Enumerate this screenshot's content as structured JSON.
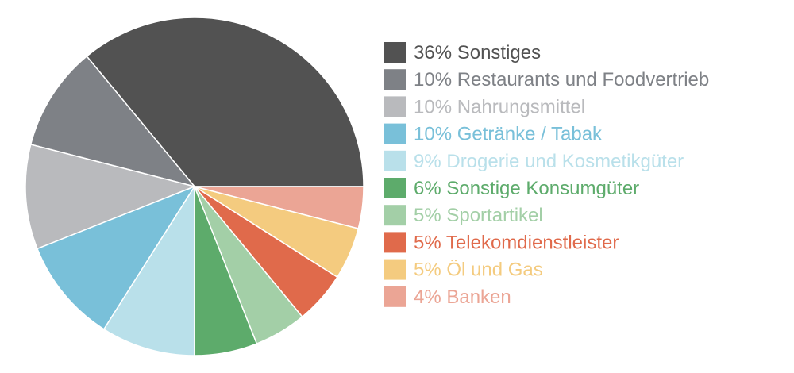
{
  "chart_data": {
    "type": "pie",
    "legend": "right",
    "slices": [
      {
        "pct": 36,
        "name": "Sonstiges",
        "color": "#525252"
      },
      {
        "pct": 10,
        "name": "Restaurants und Foodvertrieb",
        "color": "#7e8186"
      },
      {
        "pct": 10,
        "name": "Nahrungsmittel",
        "color": "#b9babd"
      },
      {
        "pct": 10,
        "name": "Getränke / Tabak",
        "color": "#79c0d9"
      },
      {
        "pct": 9,
        "name": "Drogerie und Kosmetikgüter",
        "color": "#b9e0ea"
      },
      {
        "pct": 6,
        "name": "Sonstige Konsumgüter",
        "color": "#5dab6b"
      },
      {
        "pct": 5,
        "name": "Sportartikel",
        "color": "#a3cfa7"
      },
      {
        "pct": 5,
        "name": "Telekomdienstleister",
        "color": "#e06a4b"
      },
      {
        "pct": 5,
        "name": "Öl und Gas",
        "color": "#f4cb7f"
      },
      {
        "pct": 4,
        "name": "Banken",
        "color": "#eba595"
      }
    ]
  }
}
